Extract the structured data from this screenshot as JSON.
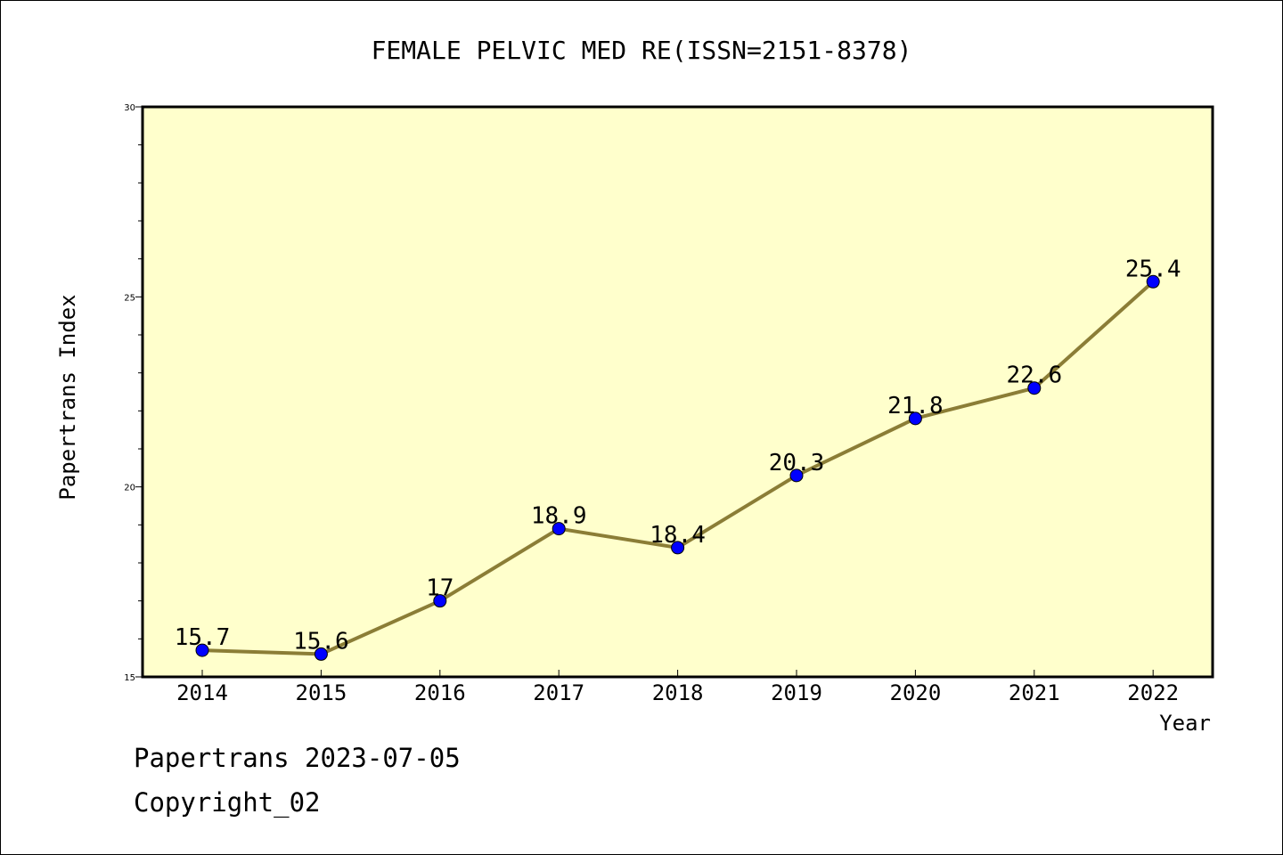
{
  "chart_data": {
    "type": "line",
    "title": "FEMALE PELVIC MED RE(ISSN=2151-8378)",
    "xlabel": "Year",
    "ylabel": "Papertrans Index",
    "categories": [
      "2014",
      "2015",
      "2016",
      "2017",
      "2018",
      "2019",
      "2020",
      "2021",
      "2022"
    ],
    "series": [
      {
        "values": [
          15.7,
          15.6,
          17,
          18.9,
          18.4,
          20.3,
          21.8,
          22.6,
          25.4
        ]
      }
    ],
    "data_labels": [
      "15.7",
      "15.6",
      "17",
      "18.9",
      "18.4",
      "20.3",
      "21.8",
      "22.6",
      "25.4"
    ],
    "ylim": [
      15,
      30
    ],
    "y_ticks": [
      "15",
      "20",
      "25",
      "30"
    ],
    "grid": false,
    "colors": {
      "plot_bg": "#ffffcc",
      "line": "#8b7d36",
      "marker": "#0000ff"
    }
  },
  "footer": {
    "line1": "Papertrans 2023-07-05",
    "line2": "Copyright_02"
  }
}
